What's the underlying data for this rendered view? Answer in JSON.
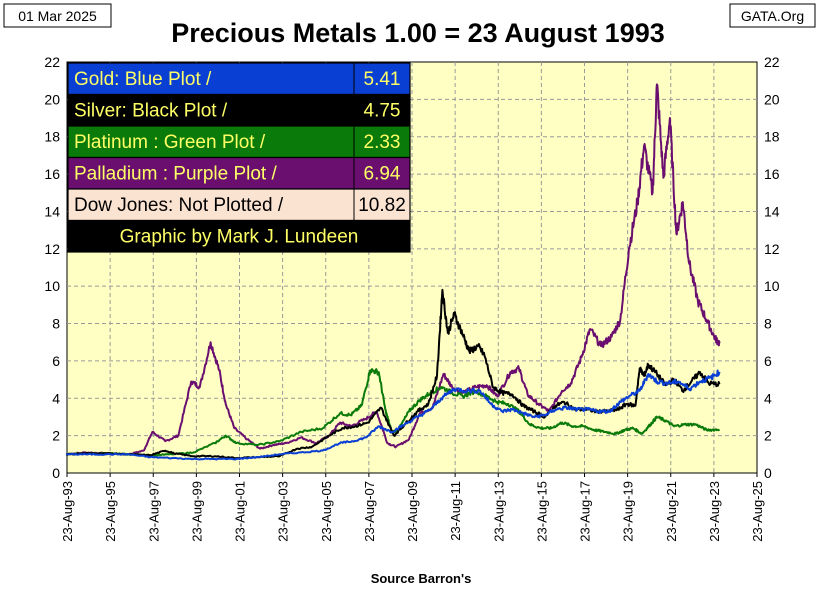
{
  "header": {
    "date": "01 Mar 2025",
    "title": "Precious Metals  1.00 = 23 August 1993",
    "source_site": "GATA.Org"
  },
  "footer": {
    "source": "Source Barron's"
  },
  "legend": {
    "rows": [
      {
        "label": "Gold: Blue Plot /",
        "value": "5.41",
        "bg": "#0a3fd4",
        "fg": "#ffff66"
      },
      {
        "label": "Silver: Black Plot /",
        "value": "4.75",
        "bg": "#000000",
        "fg": "#ffff66"
      },
      {
        "label": "Platinum : Green Plot /",
        "value": "2.33",
        "bg": "#0a7a0a",
        "fg": "#ffff66"
      },
      {
        "label": "Palladium : Purple Plot /",
        "value": "6.94",
        "bg": "#6a0f70",
        "fg": "#ffff66"
      },
      {
        "label": "Dow Jones: Not Plotted /",
        "value": "10.82",
        "bg": "#fbe3d2",
        "fg": "#000000"
      }
    ],
    "credit": {
      "label": "Graphic by Mark J. Lundeen",
      "bg": "#000000",
      "fg": "#ffff66"
    }
  },
  "chart_data": {
    "type": "line",
    "title": "Precious Metals  1.00 = 23 August 1993",
    "xlabel": "Source Barron's",
    "ylabel": "",
    "xlim": [
      1993.64,
      2025.64
    ],
    "ylim": [
      0,
      22
    ],
    "y_ticks": [
      0,
      2,
      4,
      6,
      8,
      10,
      12,
      14,
      16,
      18,
      20,
      22
    ],
    "x_tick_years": [
      1993.64,
      1995.64,
      1997.64,
      1999.64,
      2001.64,
      2003.64,
      2005.64,
      2007.64,
      2009.64,
      2011.64,
      2013.64,
      2015.64,
      2017.64,
      2019.64,
      2021.64,
      2023.64,
      2025.64
    ],
    "x_tick_labels": [
      "23-Aug-93",
      "23-Aug-95",
      "23-Aug-97",
      "23-Aug-99",
      "23-Aug-01",
      "23-Aug-03",
      "23-Aug-05",
      "23-Aug-07",
      "23-Aug-09",
      "23-Aug-11",
      "23-Aug-13",
      "23-Aug-15",
      "23-Aug-17",
      "23-Aug-19",
      "23-Aug-21",
      "23-Aug-23",
      "23-Aug-25"
    ],
    "plot_bg": "#ffffc4",
    "grid": true,
    "series": [
      {
        "name": "Palladium",
        "color": "#6a0f70",
        "x": [
          1993.6,
          1994.5,
          1995.5,
          1996.5,
          1997.2,
          1997.6,
          1998.2,
          1998.8,
          1999.4,
          1999.8,
          2000.3,
          2000.7,
          2001.0,
          2001.4,
          2002.0,
          2002.6,
          2003.2,
          2003.8,
          2004.5,
          2005.2,
          2005.8,
          2006.3,
          2006.8,
          2007.5,
          2008.0,
          2008.5,
          2008.9,
          2009.5,
          2010.0,
          2010.6,
          2011.1,
          2011.5,
          2012.0,
          2012.6,
          2013.1,
          2013.6,
          2014.2,
          2014.6,
          2015.0,
          2015.5,
          2016.0,
          2016.6,
          2017.0,
          2017.5,
          2017.9,
          2018.4,
          2018.9,
          2019.3,
          2019.7,
          2020.1,
          2020.4,
          2020.8,
          2021.0,
          2021.3,
          2021.6,
          2021.9,
          2022.2,
          2022.5,
          2022.9,
          2023.3,
          2023.7,
          2023.9
        ],
        "y": [
          1.0,
          1.1,
          1.05,
          1.0,
          1.2,
          2.2,
          1.7,
          2.0,
          4.9,
          4.6,
          7.0,
          5.5,
          3.7,
          2.4,
          1.8,
          1.3,
          1.5,
          1.6,
          1.9,
          1.6,
          2.0,
          2.7,
          2.5,
          2.9,
          3.3,
          1.6,
          1.4,
          1.8,
          3.2,
          3.5,
          5.3,
          4.6,
          4.3,
          4.6,
          4.7,
          4.1,
          5.4,
          5.6,
          4.2,
          3.7,
          3.3,
          4.4,
          4.8,
          6.2,
          7.7,
          6.8,
          7.3,
          8.2,
          12.0,
          14.5,
          17.5,
          15.0,
          20.8,
          15.8,
          19.0,
          12.8,
          14.5,
          11.2,
          9.2,
          8.2,
          7.2,
          6.94
        ]
      },
      {
        "name": "Platinum",
        "color": "#0a7a0a",
        "x": [
          1993.6,
          1994.5,
          1995.5,
          1996.5,
          1997.5,
          1998.5,
          1999.5,
          2000.5,
          2001.0,
          2001.5,
          2002.5,
          2003.5,
          2004.5,
          2005.5,
          2006.3,
          2006.8,
          2007.3,
          2007.7,
          2008.1,
          2008.4,
          2008.7,
          2009.0,
          2009.5,
          2010.0,
          2010.5,
          2011.0,
          2011.5,
          2012.0,
          2012.6,
          2013.1,
          2013.6,
          2014.1,
          2014.6,
          2015.1,
          2015.6,
          2016.1,
          2016.6,
          2017.1,
          2017.6,
          2018.1,
          2018.6,
          2019.1,
          2019.5,
          2019.9,
          2020.3,
          2020.7,
          2021.0,
          2021.4,
          2021.8,
          2022.3,
          2022.8,
          2023.3,
          2023.9
        ],
        "y": [
          1.0,
          1.05,
          1.05,
          1.0,
          0.95,
          1.0,
          1.1,
          1.6,
          2.0,
          1.6,
          1.5,
          1.7,
          2.2,
          2.4,
          3.2,
          3.1,
          3.6,
          5.5,
          5.4,
          3.4,
          2.2,
          2.3,
          3.3,
          3.9,
          4.3,
          4.6,
          4.3,
          4.1,
          4.4,
          4.1,
          3.8,
          3.7,
          3.3,
          2.6,
          2.4,
          2.4,
          2.7,
          2.5,
          2.5,
          2.3,
          2.2,
          2.1,
          2.3,
          2.4,
          2.1,
          2.6,
          3.0,
          2.8,
          2.5,
          2.6,
          2.6,
          2.3,
          2.33
        ]
      },
      {
        "name": "Silver",
        "color": "#000000",
        "x": [
          1993.6,
          1994.5,
          1995.5,
          1996.5,
          1997.5,
          1998.2,
          1998.6,
          1999.5,
          2000.5,
          2001.5,
          2002.5,
          2003.5,
          2004.3,
          2005.0,
          2005.8,
          2006.4,
          2007.0,
          2007.6,
          2008.2,
          2008.8,
          2009.3,
          2009.9,
          2010.4,
          2010.8,
          2011.05,
          2011.3,
          2011.6,
          2012.0,
          2012.3,
          2012.7,
          2013.0,
          2013.4,
          2013.8,
          2014.3,
          2014.8,
          2015.3,
          2015.8,
          2016.3,
          2016.7,
          2017.2,
          2017.7,
          2018.2,
          2018.7,
          2019.2,
          2019.6,
          2020.0,
          2020.2,
          2020.4,
          2020.6,
          2021.0,
          2021.4,
          2021.8,
          2022.2,
          2022.6,
          2023.0,
          2023.4,
          2023.9
        ],
        "y": [
          1.0,
          1.05,
          1.05,
          1.0,
          0.95,
          1.2,
          1.05,
          0.9,
          0.9,
          0.8,
          0.85,
          0.9,
          1.3,
          1.4,
          2.0,
          2.4,
          2.5,
          2.7,
          3.5,
          2.0,
          2.6,
          3.3,
          3.7,
          5.2,
          9.8,
          7.5,
          8.5,
          7.4,
          6.5,
          6.8,
          6.3,
          4.6,
          4.3,
          4.2,
          3.6,
          3.3,
          3.0,
          3.6,
          3.8,
          3.4,
          3.4,
          3.3,
          3.3,
          3.4,
          3.7,
          3.6,
          5.6,
          5.2,
          5.8,
          5.3,
          4.7,
          5.0,
          4.4,
          4.9,
          5.4,
          4.8,
          4.75
        ]
      },
      {
        "name": "Gold",
        "color": "#0a3fd4",
        "x": [
          1993.6,
          1994.5,
          1995.5,
          1996.5,
          1997.5,
          1998.5,
          1999.5,
          2000.5,
          2001.5,
          2002.5,
          2003.5,
          2004.5,
          2005.5,
          2006.3,
          2006.9,
          2007.5,
          2008.1,
          2008.7,
          2009.3,
          2009.9,
          2010.5,
          2011.0,
          2011.6,
          2012.2,
          2012.8,
          2013.3,
          2013.8,
          2014.3,
          2014.8,
          2015.3,
          2015.8,
          2016.3,
          2016.8,
          2017.3,
          2017.8,
          2018.3,
          2018.8,
          2019.3,
          2019.7,
          2020.2,
          2020.6,
          2021.0,
          2021.5,
          2022.0,
          2022.5,
          2023.0,
          2023.5,
          2023.9
        ],
        "y": [
          1.0,
          1.0,
          1.0,
          1.0,
          0.85,
          0.8,
          0.75,
          0.75,
          0.75,
          0.85,
          1.0,
          1.1,
          1.2,
          1.6,
          1.7,
          1.9,
          2.5,
          2.2,
          2.6,
          3.0,
          3.4,
          4.0,
          4.5,
          4.4,
          4.4,
          3.7,
          3.3,
          3.4,
          3.2,
          3.0,
          3.1,
          3.4,
          3.5,
          3.4,
          3.4,
          3.3,
          3.3,
          3.8,
          4.1,
          4.4,
          5.3,
          4.9,
          4.8,
          4.9,
          4.5,
          4.9,
          5.1,
          5.41
        ]
      }
    ]
  }
}
